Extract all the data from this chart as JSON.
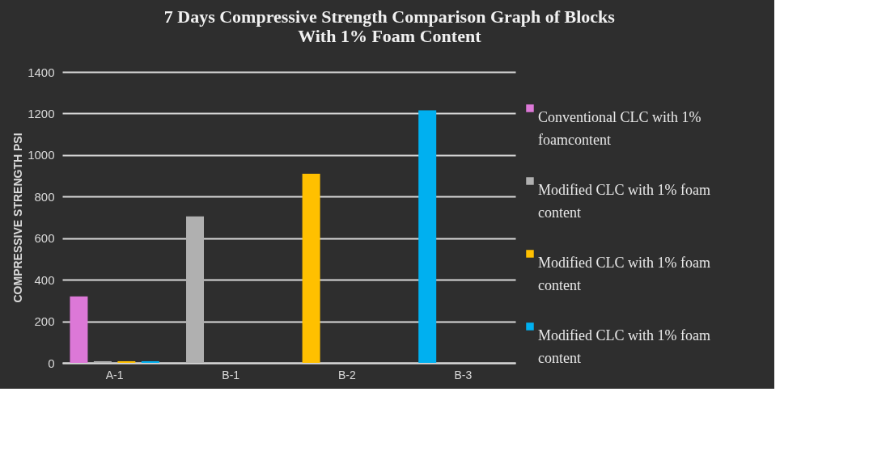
{
  "chart_data": {
    "type": "bar",
    "title": "7 Days Compressive  Strength Comparison  Graph of Blocks\nWith 1% Foam Content",
    "ylabel": "COMPRESSIVE STRENGTH PSI",
    "categories": [
      "A-1",
      "B-1",
      "B-2",
      "B-3"
    ],
    "series": [
      {
        "name": "Conventional CLC with 1% foamcontent",
        "color": "#dc78d7",
        "colors": [
          "#dc78d7",
          "#b0b0b0",
          "#ffc000",
          "#00b0f0"
        ],
        "values": [
          320,
          705,
          910,
          1215
        ]
      },
      {
        "name": "Modified CLC with 1% foam content",
        "color": "#b0b0b0",
        "values": [
          8,
          null,
          null,
          null
        ]
      },
      {
        "name": "Modified CLC with 1% foam content",
        "color": "#ffc000",
        "values": [
          8,
          null,
          null,
          null
        ]
      },
      {
        "name": "Modified CLC with 1% foam content",
        "color": "#00b0f0",
        "values": [
          8,
          null,
          null,
          null
        ]
      }
    ],
    "ylim": [
      0,
      1400
    ],
    "yticks": [
      0,
      200,
      400,
      600,
      800,
      1000,
      1200,
      1400
    ],
    "grid": "y",
    "legend": "right"
  }
}
